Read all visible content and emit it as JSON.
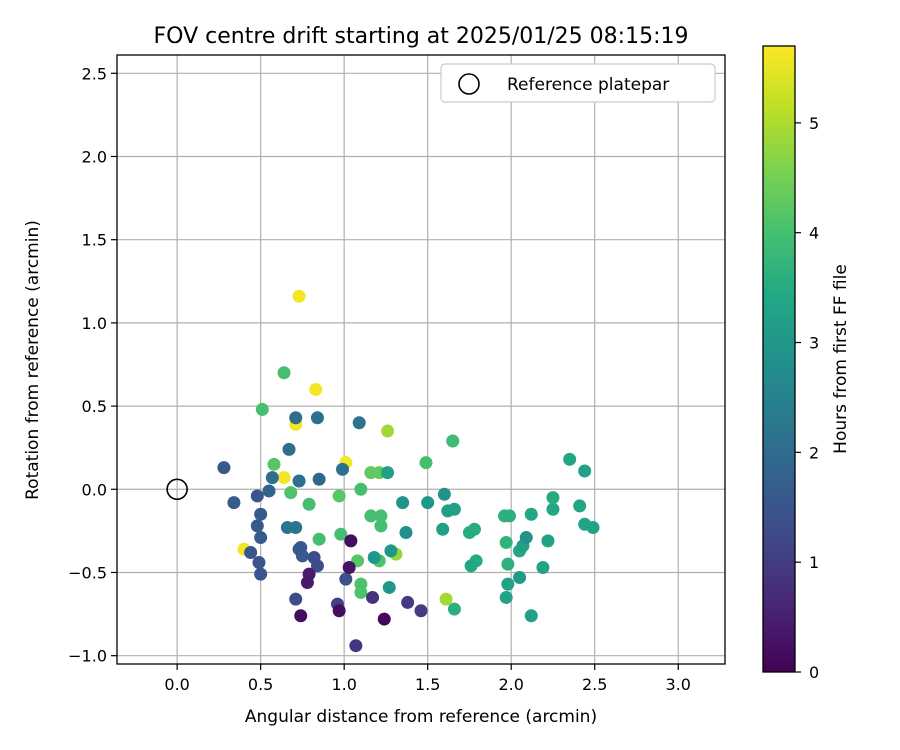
{
  "chart_data": {
    "type": "scatter",
    "title": "FOV centre drift starting at 2025/01/25 08:15:19",
    "xlabel": "Angular distance from reference (arcmin)",
    "ylabel": "Rotation from reference (arcmin)",
    "xlim": [
      -0.36,
      3.28
    ],
    "ylim": [
      -1.05,
      2.61
    ],
    "xticks": [
      0.0,
      0.5,
      1.0,
      1.5,
      2.0,
      2.5,
      3.0
    ],
    "xtick_labels": [
      "0.0",
      "0.5",
      "1.0",
      "1.5",
      "2.0",
      "2.5",
      "3.0"
    ],
    "yticks": [
      -1.0,
      -0.5,
      0.0,
      0.5,
      1.0,
      1.5,
      2.0,
      2.5
    ],
    "ytick_labels": [
      "−1.0",
      "−0.5",
      "0.0",
      "0.5",
      "1.0",
      "1.5",
      "2.0",
      "2.5"
    ],
    "grid": true,
    "legend": {
      "position": "top-right",
      "entries": [
        "Reference platepar"
      ]
    },
    "reference_point": {
      "x": 0.0,
      "y": 0.0
    },
    "colorbar": {
      "label": "Hours from first FF file",
      "colormap": "viridis",
      "range": [
        0,
        5.7
      ],
      "ticks": [
        0,
        1,
        2,
        3,
        4,
        5
      ],
      "tick_labels": [
        "0",
        "1",
        "2",
        "3",
        "4",
        "5"
      ]
    },
    "points": [
      {
        "x": 0.73,
        "y": 1.16,
        "h": 5.6
      },
      {
        "x": 0.83,
        "y": 0.6,
        "h": 5.6
      },
      {
        "x": 0.71,
        "y": 0.39,
        "h": 5.6
      },
      {
        "x": 1.01,
        "y": 0.16,
        "h": 5.6
      },
      {
        "x": 0.64,
        "y": 0.07,
        "h": 5.6
      },
      {
        "x": 0.4,
        "y": -0.36,
        "h": 5.6
      },
      {
        "x": 1.26,
        "y": 0.35,
        "h": 4.9
      },
      {
        "x": 1.61,
        "y": -0.66,
        "h": 4.9
      },
      {
        "x": 1.31,
        "y": -0.39,
        "h": 4.8
      },
      {
        "x": 0.64,
        "y": 0.7,
        "h": 4.0
      },
      {
        "x": 0.51,
        "y": 0.48,
        "h": 4.0
      },
      {
        "x": 1.65,
        "y": 0.29,
        "h": 3.9
      },
      {
        "x": 1.49,
        "y": 0.16,
        "h": 4.0
      },
      {
        "x": 0.58,
        "y": 0.15,
        "h": 4.2
      },
      {
        "x": 1.16,
        "y": 0.1,
        "h": 4.3
      },
      {
        "x": 1.21,
        "y": 0.1,
        "h": 4.3
      },
      {
        "x": 0.68,
        "y": -0.02,
        "h": 4.1
      },
      {
        "x": 0.97,
        "y": -0.04,
        "h": 4.2
      },
      {
        "x": 1.1,
        "y": 0.0,
        "h": 4.0
      },
      {
        "x": 0.79,
        "y": -0.09,
        "h": 4.0
      },
      {
        "x": 1.16,
        "y": -0.16,
        "h": 4.0
      },
      {
        "x": 1.22,
        "y": -0.16,
        "h": 4.0
      },
      {
        "x": 1.22,
        "y": -0.22,
        "h": 4.0
      },
      {
        "x": 0.85,
        "y": -0.3,
        "h": 4.0
      },
      {
        "x": 0.98,
        "y": -0.27,
        "h": 4.0
      },
      {
        "x": 1.08,
        "y": -0.43,
        "h": 4.2
      },
      {
        "x": 1.21,
        "y": -0.43,
        "h": 4.1
      },
      {
        "x": 1.1,
        "y": -0.57,
        "h": 4.1
      },
      {
        "x": 1.1,
        "y": -0.62,
        "h": 4.1
      },
      {
        "x": 1.66,
        "y": -0.72,
        "h": 3.6
      },
      {
        "x": 1.26,
        "y": 0.1,
        "h": 3.2
      },
      {
        "x": 1.35,
        "y": -0.08,
        "h": 2.9
      },
      {
        "x": 1.5,
        "y": -0.08,
        "h": 3.0
      },
      {
        "x": 1.6,
        "y": -0.03,
        "h": 2.9
      },
      {
        "x": 1.62,
        "y": -0.13,
        "h": 3.2
      },
      {
        "x": 1.66,
        "y": -0.12,
        "h": 3.2
      },
      {
        "x": 1.59,
        "y": -0.24,
        "h": 3.2
      },
      {
        "x": 1.37,
        "y": -0.26,
        "h": 2.8
      },
      {
        "x": 1.28,
        "y": -0.37,
        "h": 3.0
      },
      {
        "x": 1.18,
        "y": -0.41,
        "h": 3.0
      },
      {
        "x": 1.27,
        "y": -0.59,
        "h": 3.0
      },
      {
        "x": 1.75,
        "y": -0.26,
        "h": 3.5
      },
      {
        "x": 1.78,
        "y": -0.24,
        "h": 3.5
      },
      {
        "x": 1.79,
        "y": -0.43,
        "h": 3.5
      },
      {
        "x": 1.76,
        "y": -0.46,
        "h": 3.4
      },
      {
        "x": 1.96,
        "y": -0.16,
        "h": 3.6
      },
      {
        "x": 1.99,
        "y": -0.16,
        "h": 3.6
      },
      {
        "x": 1.97,
        "y": -0.32,
        "h": 3.7
      },
      {
        "x": 1.98,
        "y": -0.45,
        "h": 3.6
      },
      {
        "x": 1.98,
        "y": -0.57,
        "h": 3.3
      },
      {
        "x": 1.97,
        "y": -0.65,
        "h": 3.3
      },
      {
        "x": 2.05,
        "y": -0.37,
        "h": 3.4
      },
      {
        "x": 2.07,
        "y": -0.34,
        "h": 3.2
      },
      {
        "x": 2.09,
        "y": -0.29,
        "h": 2.9
      },
      {
        "x": 2.12,
        "y": -0.15,
        "h": 3.4
      },
      {
        "x": 2.05,
        "y": -0.53,
        "h": 3.1
      },
      {
        "x": 2.12,
        "y": -0.76,
        "h": 3.2
      },
      {
        "x": 2.19,
        "y": -0.47,
        "h": 3.3
      },
      {
        "x": 2.22,
        "y": -0.31,
        "h": 3.3
      },
      {
        "x": 2.25,
        "y": -0.12,
        "h": 3.4
      },
      {
        "x": 2.25,
        "y": -0.05,
        "h": 3.5
      },
      {
        "x": 2.35,
        "y": 0.18,
        "h": 3.4
      },
      {
        "x": 2.41,
        "y": -0.1,
        "h": 3.4
      },
      {
        "x": 2.44,
        "y": 0.11,
        "h": 3.3
      },
      {
        "x": 2.44,
        "y": -0.21,
        "h": 3.3
      },
      {
        "x": 2.49,
        "y": -0.23,
        "h": 3.3
      },
      {
        "x": 0.71,
        "y": 0.43,
        "h": 2.0
      },
      {
        "x": 0.84,
        "y": 0.43,
        "h": 2.1
      },
      {
        "x": 1.09,
        "y": 0.4,
        "h": 2.2
      },
      {
        "x": 0.67,
        "y": 0.24,
        "h": 2.1
      },
      {
        "x": 0.99,
        "y": 0.12,
        "h": 2.1
      },
      {
        "x": 0.57,
        "y": 0.07,
        "h": 2.0
      },
      {
        "x": 0.73,
        "y": 0.05,
        "h": 2.1
      },
      {
        "x": 0.85,
        "y": 0.06,
        "h": 1.9
      },
      {
        "x": 0.55,
        "y": -0.01,
        "h": 1.8
      },
      {
        "x": 0.66,
        "y": -0.23,
        "h": 2.2
      },
      {
        "x": 0.71,
        "y": -0.23,
        "h": 2.2
      },
      {
        "x": 0.28,
        "y": 0.13,
        "h": 1.6
      },
      {
        "x": 0.34,
        "y": -0.08,
        "h": 1.6
      },
      {
        "x": 0.48,
        "y": -0.04,
        "h": 1.5
      },
      {
        "x": 0.5,
        "y": -0.15,
        "h": 1.6
      },
      {
        "x": 0.48,
        "y": -0.22,
        "h": 1.6
      },
      {
        "x": 0.5,
        "y": -0.29,
        "h": 1.6
      },
      {
        "x": 0.44,
        "y": -0.38,
        "h": 1.5
      },
      {
        "x": 0.49,
        "y": -0.44,
        "h": 1.5
      },
      {
        "x": 0.5,
        "y": -0.51,
        "h": 1.5
      },
      {
        "x": 0.73,
        "y": -0.36,
        "h": 1.6
      },
      {
        "x": 0.74,
        "y": -0.35,
        "h": 1.6
      },
      {
        "x": 0.75,
        "y": -0.4,
        "h": 1.6
      },
      {
        "x": 0.82,
        "y": -0.41,
        "h": 1.3
      },
      {
        "x": 0.84,
        "y": -0.46,
        "h": 1.3
      },
      {
        "x": 1.01,
        "y": -0.54,
        "h": 1.4
      },
      {
        "x": 0.71,
        "y": -0.66,
        "h": 1.3
      },
      {
        "x": 0.96,
        "y": -0.69,
        "h": 1.1
      },
      {
        "x": 1.38,
        "y": -0.68,
        "h": 1.0
      },
      {
        "x": 1.46,
        "y": -0.73,
        "h": 1.0
      },
      {
        "x": 1.17,
        "y": -0.65,
        "h": 0.8
      },
      {
        "x": 1.07,
        "y": -0.94,
        "h": 0.9
      },
      {
        "x": 0.79,
        "y": -0.51,
        "h": 0.4
      },
      {
        "x": 0.78,
        "y": -0.56,
        "h": 0.4
      },
      {
        "x": 1.03,
        "y": -0.47,
        "h": 0.3
      },
      {
        "x": 1.04,
        "y": -0.31,
        "h": 0.2
      },
      {
        "x": 0.74,
        "y": -0.76,
        "h": 0.2
      },
      {
        "x": 0.97,
        "y": -0.73,
        "h": 0.2
      },
      {
        "x": 1.24,
        "y": -0.78,
        "h": 0.1
      }
    ]
  }
}
